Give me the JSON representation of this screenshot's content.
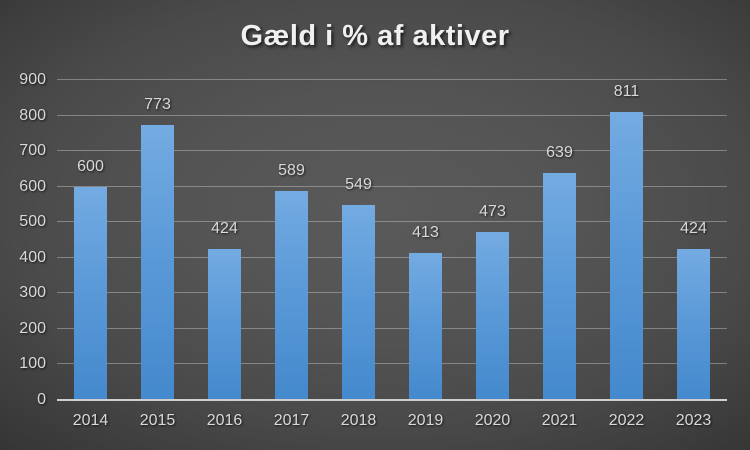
{
  "chart_data": {
    "type": "bar",
    "title": "Gæld i % af aktiver",
    "categories": [
      "2014",
      "2015",
      "2016",
      "2017",
      "2018",
      "2019",
      "2020",
      "2021",
      "2022",
      "2023"
    ],
    "values": [
      600,
      773,
      424,
      589,
      549,
      413,
      473,
      639,
      811,
      424
    ],
    "data_labels": [
      "600",
      "773",
      "424",
      "589",
      "549",
      "413",
      "473",
      "639",
      "811",
      "424"
    ],
    "xlabel": "",
    "ylabel": "",
    "ylim": [
      0,
      900
    ],
    "ytick_step": 100,
    "ytick_labels": [
      "0",
      "100",
      "200",
      "300",
      "400",
      "500",
      "600",
      "700",
      "800",
      "900"
    ],
    "grid": true,
    "legend": "none",
    "colors": {
      "bar_top": "#74abe2",
      "bar_mid": "#5b9ad8",
      "bar_bottom": "#4489cd",
      "title_text": "#f0f0f0",
      "label_text": "#d9d9d9",
      "gridline": "rgba(217,217,217,0.40)",
      "axis_line": "#cfcfcf",
      "background_center": "#585858",
      "background_edge": "#262626"
    }
  }
}
